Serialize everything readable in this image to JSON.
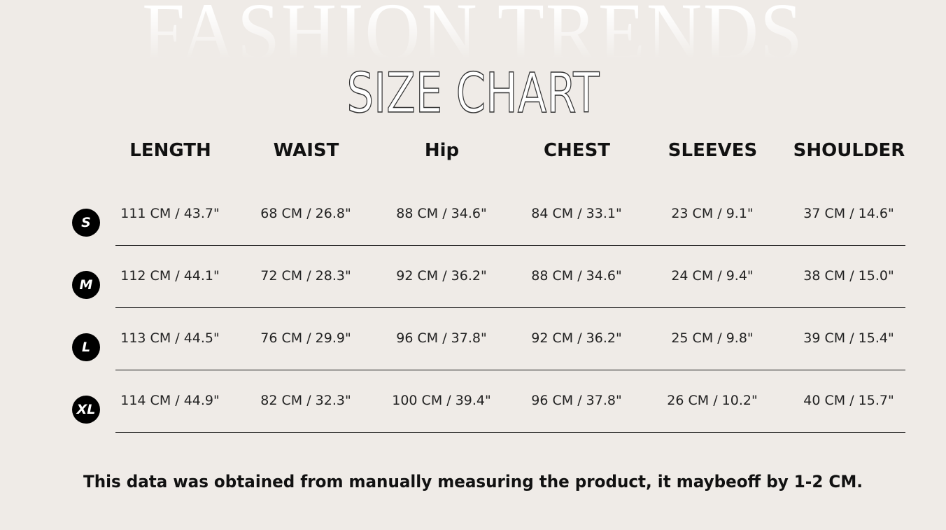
{
  "background_title": "FASHION TRENDS",
  "title": "SIZE CHART",
  "columns": [
    "LENGTH",
    "WAIST",
    "Hip",
    "CHEST",
    "SLEEVES",
    "SHOULDER"
  ],
  "rows": [
    {
      "size": "S",
      "values": [
        "111 CM / 43.7\"",
        "68 CM / 26.8\"",
        "88 CM / 34.6\"",
        "84 CM / 33.1\"",
        "23 CM / 9.1\"",
        "37 CM / 14.6\""
      ]
    },
    {
      "size": "M",
      "values": [
        "112 CM / 44.1\"",
        "72 CM / 28.3\"",
        "92 CM / 36.2\"",
        "88 CM / 34.6\"",
        "24 CM / 9.4\"",
        "38 CM / 15.0\""
      ]
    },
    {
      "size": "L",
      "values": [
        "113 CM / 44.5\"",
        "76 CM / 29.9\"",
        "96 CM / 37.8\"",
        "92 CM / 36.2\"",
        "25 CM / 9.8\"",
        "39 CM / 15.4\""
      ]
    },
    {
      "size": "XL",
      "values": [
        "114 CM / 44.9\"",
        "82 CM / 32.3\"",
        "100 CM / 39.4\"",
        "96 CM / 37.8\"",
        "26 CM / 10.2\"",
        "40 CM / 15.7\""
      ]
    }
  ],
  "note": "This data was obtained from manually measuring the product, it maybeoff by 1-2 CM.",
  "colors": {
    "background": "#efebe7",
    "badge": "#000000",
    "text": "#111111"
  }
}
